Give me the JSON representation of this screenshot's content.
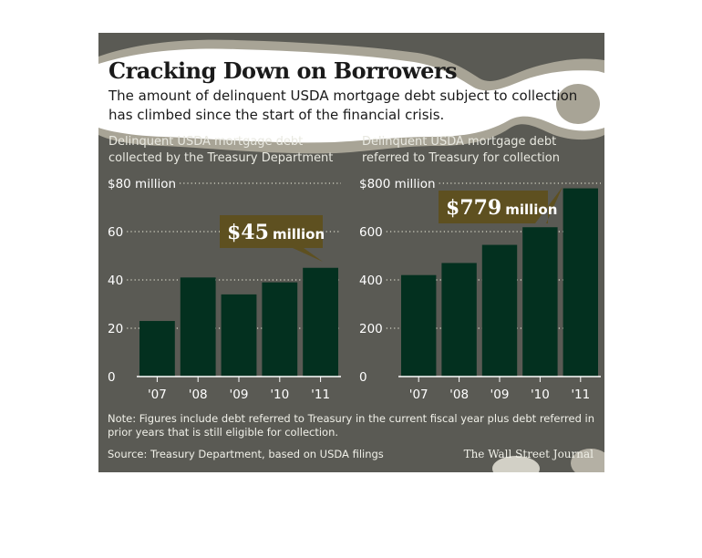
{
  "header": {
    "title": "Cracking Down on Borrowers",
    "subtitle_line1": "The amount of delinquent USDA mortgage debt subject to collection",
    "subtitle_line2": "has climbed since the start of the financial crisis."
  },
  "chart_data": [
    {
      "type": "bar",
      "title_line1": "Delinquent USDA mortgage debt",
      "title_line2": "collected by the Treasury Department",
      "categories": [
        "'07",
        "'08",
        "'09",
        "'10",
        "'11"
      ],
      "values": [
        23,
        41,
        34,
        39,
        45
      ],
      "ylim": [
        0,
        80
      ],
      "yticks": [
        {
          "value": 0,
          "label": "0"
        },
        {
          "value": 20,
          "label": "20"
        },
        {
          "value": 40,
          "label": "40"
        },
        {
          "value": 60,
          "label": "60"
        },
        {
          "value": 80,
          "label": "$80 million"
        }
      ],
      "callout": {
        "amount": "$45",
        "unit": "million"
      },
      "bar_color": "#03301f",
      "grid": true
    },
    {
      "type": "bar",
      "title_line1": "Delinquent USDA mortgage debt",
      "title_line2": "referred to Treasury for collection",
      "categories": [
        "'07",
        "'08",
        "'09",
        "'10",
        "'11"
      ],
      "values": [
        420,
        470,
        545,
        618,
        779
      ],
      "ylim": [
        0,
        800
      ],
      "yticks": [
        {
          "value": 0,
          "label": "0"
        },
        {
          "value": 200,
          "label": "200"
        },
        {
          "value": 400,
          "label": "400"
        },
        {
          "value": 600,
          "label": "600"
        },
        {
          "value": 800,
          "label": "$800 million"
        }
      ],
      "callout": {
        "amount": "$779",
        "unit": "million"
      },
      "bar_color": "#03301f",
      "grid": true
    }
  ],
  "footer": {
    "note_line1": "Note: Figures include debt referred to Treasury in the current fiscal year plus debt referred in",
    "note_line2": "prior years that is still eligible for collection.",
    "source": "Source: Treasury Department, based on USDA filings",
    "credit": "The Wall Street Journal"
  },
  "colors": {
    "background": "#5a5a54",
    "callout": "#5e5020",
    "highlight": "#ffffff",
    "bar": "#03301f"
  }
}
